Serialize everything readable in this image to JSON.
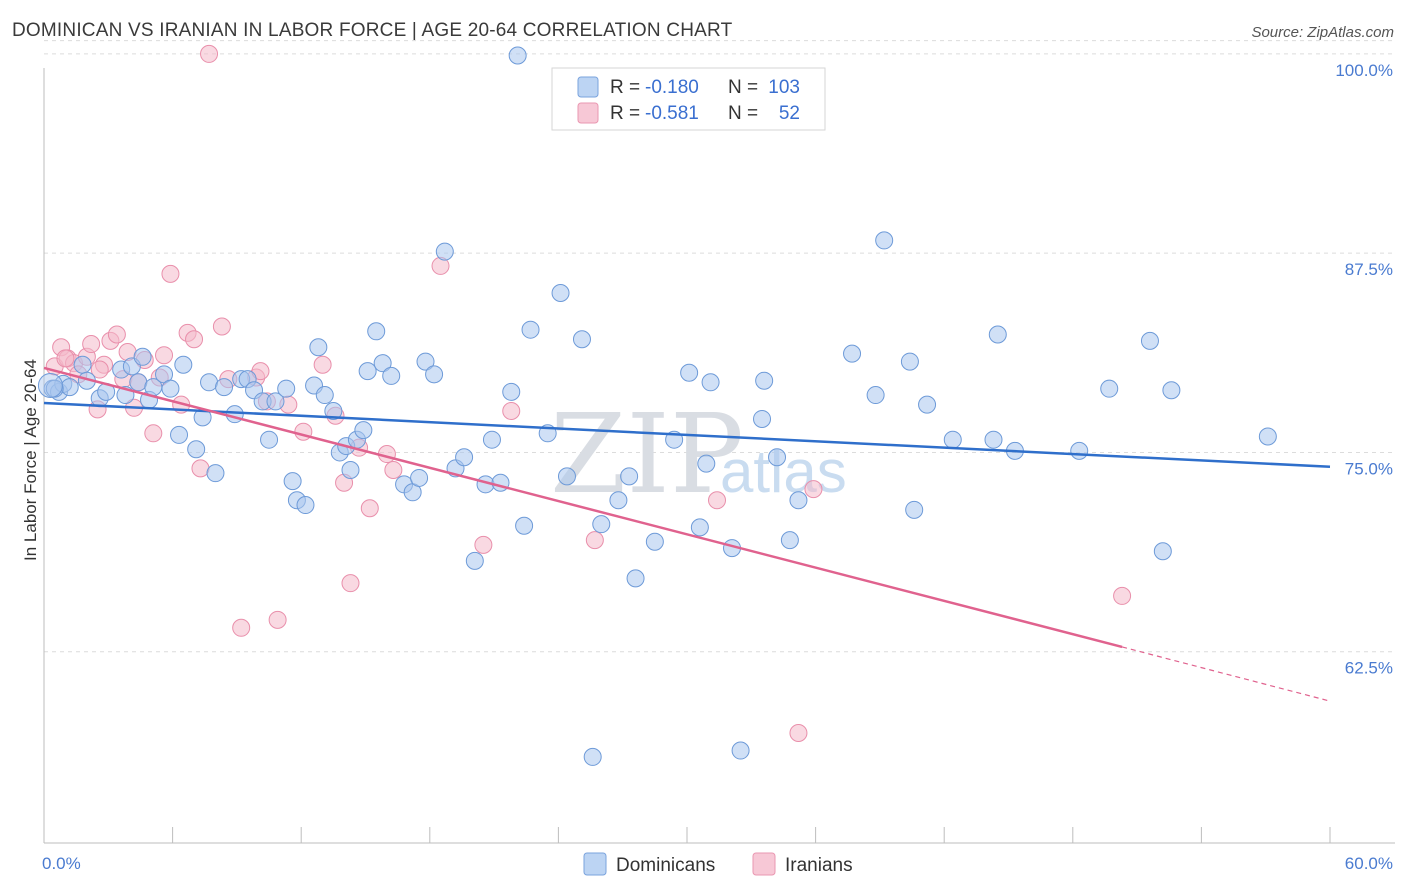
{
  "title": "DOMINICAN VS IRANIAN IN LABOR FORCE | AGE 20-64 CORRELATION CHART",
  "source": "Source: ZipAtlas.com",
  "colors": {
    "blue_fill": "#a9c6ee",
    "blue_stroke": "#6d9ad8",
    "blue_line": "#2f6fcb",
    "pink_fill": "#f4b9ca",
    "pink_stroke": "#e98fab",
    "pink_line": "#e0628e",
    "axis_text": "#4a7bd0",
    "grid": "#dcdcdc"
  },
  "legend_box": {
    "rows": [
      {
        "r_label": "R =",
        "r_value": "-0.180",
        "n_label": "N =",
        "n_value": "103"
      },
      {
        "r_label": "R =",
        "r_value": "-0.581",
        "n_label": "N =",
        "n_value": "52"
      }
    ]
  },
  "bottom_legend": [
    "Dominicans",
    "Iranians"
  ],
  "watermark": {
    "zip": "ZIP",
    "atlas": "atlas"
  },
  "chart_data": {
    "type": "scatter",
    "title": "DOMINICAN VS IRANIAN IN LABOR FORCE | AGE 20-64 CORRELATION CHART",
    "xlabel": "",
    "ylabel": "In Labor Force | Age 20-64",
    "xlim": [
      0,
      60
    ],
    "ylim": [
      50.5,
      101.5
    ],
    "x_tick_labels": [
      "0.0%",
      "60.0%"
    ],
    "y_ticks": [
      62.5,
      75.0,
      87.5,
      100.0
    ],
    "y_tick_labels": [
      "62.5%",
      "75.0%",
      "87.5%",
      "100.0%"
    ],
    "grid": "horizontal dashed",
    "legend_position": "bottom",
    "series": [
      {
        "name": "Dominicans",
        "trend": {
          "x": [
            0,
            60
          ],
          "y": [
            78.1,
            74.1
          ]
        },
        "points": [
          [
            0.4,
            79.0
          ],
          [
            0.7,
            78.8
          ],
          [
            0.9,
            79.3
          ],
          [
            1.2,
            79.1
          ],
          [
            1.8,
            80.5
          ],
          [
            2.0,
            79.5
          ],
          [
            2.6,
            78.4
          ],
          [
            2.9,
            78.8
          ],
          [
            3.6,
            80.2
          ],
          [
            3.8,
            78.6
          ],
          [
            4.1,
            80.4
          ],
          [
            4.4,
            79.4
          ],
          [
            4.6,
            81.0
          ],
          [
            4.9,
            78.3
          ],
          [
            5.1,
            79.1
          ],
          [
            5.6,
            79.9
          ],
          [
            5.9,
            79.0
          ],
          [
            6.3,
            76.1
          ],
          [
            6.5,
            80.5
          ],
          [
            7.1,
            75.2
          ],
          [
            7.4,
            77.2
          ],
          [
            7.7,
            79.4
          ],
          [
            8.0,
            73.7
          ],
          [
            8.4,
            79.1
          ],
          [
            8.9,
            77.4
          ],
          [
            9.2,
            79.6
          ],
          [
            9.5,
            79.6
          ],
          [
            9.8,
            78.9
          ],
          [
            10.2,
            78.2
          ],
          [
            10.5,
            75.8
          ],
          [
            10.8,
            78.2
          ],
          [
            11.3,
            79.0
          ],
          [
            11.6,
            73.2
          ],
          [
            11.8,
            72.0
          ],
          [
            12.2,
            71.7
          ],
          [
            12.6,
            79.2
          ],
          [
            12.8,
            81.6
          ],
          [
            13.1,
            78.6
          ],
          [
            13.5,
            77.6
          ],
          [
            13.8,
            75.0
          ],
          [
            14.1,
            75.4
          ],
          [
            14.3,
            73.9
          ],
          [
            14.6,
            75.8
          ],
          [
            14.9,
            76.4
          ],
          [
            15.1,
            80.1
          ],
          [
            15.5,
            82.6
          ],
          [
            15.8,
            80.6
          ],
          [
            16.2,
            79.8
          ],
          [
            16.8,
            73.0
          ],
          [
            17.2,
            72.5
          ],
          [
            17.5,
            73.4
          ],
          [
            17.8,
            80.7
          ],
          [
            18.2,
            79.9
          ],
          [
            18.7,
            87.6
          ],
          [
            19.2,
            74.0
          ],
          [
            19.6,
            74.7
          ],
          [
            20.1,
            68.2
          ],
          [
            20.6,
            73.0
          ],
          [
            20.9,
            75.8
          ],
          [
            21.3,
            73.1
          ],
          [
            21.8,
            78.8
          ],
          [
            22.1,
            99.9
          ],
          [
            22.4,
            70.4
          ],
          [
            22.7,
            82.7
          ],
          [
            23.5,
            76.2
          ],
          [
            24.1,
            85.0
          ],
          [
            24.4,
            73.5
          ],
          [
            25.1,
            82.1
          ],
          [
            25.6,
            55.9
          ],
          [
            26.0,
            70.5
          ],
          [
            26.8,
            72.0
          ],
          [
            27.3,
            73.5
          ],
          [
            27.6,
            67.1
          ],
          [
            28.5,
            69.4
          ],
          [
            29.4,
            75.8
          ],
          [
            30.1,
            80.0
          ],
          [
            30.6,
            70.3
          ],
          [
            30.9,
            74.3
          ],
          [
            31.1,
            79.4
          ],
          [
            32.1,
            69.0
          ],
          [
            32.5,
            56.3
          ],
          [
            33.5,
            77.1
          ],
          [
            33.6,
            79.5
          ],
          [
            34.2,
            74.7
          ],
          [
            34.8,
            69.5
          ],
          [
            35.2,
            72.0
          ],
          [
            37.7,
            81.2
          ],
          [
            38.8,
            78.6
          ],
          [
            39.2,
            88.3
          ],
          [
            40.4,
            80.7
          ],
          [
            40.6,
            71.4
          ],
          [
            41.2,
            78.0
          ],
          [
            42.4,
            75.8
          ],
          [
            44.3,
            75.8
          ],
          [
            44.5,
            82.4
          ],
          [
            45.3,
            75.1
          ],
          [
            48.3,
            75.1
          ],
          [
            49.7,
            79.0
          ],
          [
            51.6,
            82.0
          ],
          [
            52.2,
            68.8
          ],
          [
            52.6,
            78.9
          ],
          [
            57.1,
            76.0
          ],
          [
            0.5,
            79.0
          ]
        ]
      },
      {
        "name": "Iranians",
        "trend": {
          "x": [
            0,
            50.3
          ],
          "y": [
            80.3,
            62.8
          ],
          "dashed_to": {
            "x": 60,
            "y": 59.4
          }
        },
        "points": [
          [
            0.5,
            80.4
          ],
          [
            0.8,
            81.6
          ],
          [
            1.1,
            80.9
          ],
          [
            1.4,
            80.6
          ],
          [
            1.6,
            79.9
          ],
          [
            2.0,
            81.0
          ],
          [
            2.2,
            81.8
          ],
          [
            2.5,
            77.7
          ],
          [
            2.8,
            80.5
          ],
          [
            3.1,
            82.0
          ],
          [
            3.4,
            82.4
          ],
          [
            3.7,
            79.6
          ],
          [
            3.9,
            81.3
          ],
          [
            4.2,
            77.8
          ],
          [
            4.4,
            79.4
          ],
          [
            4.7,
            80.8
          ],
          [
            5.1,
            76.2
          ],
          [
            5.4,
            79.7
          ],
          [
            5.6,
            81.1
          ],
          [
            5.9,
            86.2
          ],
          [
            6.4,
            78.0
          ],
          [
            6.7,
            82.5
          ],
          [
            7.0,
            82.1
          ],
          [
            7.3,
            74.0
          ],
          [
            7.7,
            100.0
          ],
          [
            8.3,
            82.9
          ],
          [
            8.6,
            79.6
          ],
          [
            9.2,
            64.0
          ],
          [
            9.9,
            79.7
          ],
          [
            10.1,
            80.1
          ],
          [
            10.4,
            78.2
          ],
          [
            10.9,
            64.5
          ],
          [
            11.4,
            78.0
          ],
          [
            12.1,
            76.3
          ],
          [
            13.0,
            80.5
          ],
          [
            13.6,
            77.3
          ],
          [
            14.0,
            73.1
          ],
          [
            14.3,
            66.8
          ],
          [
            14.7,
            75.3
          ],
          [
            15.2,
            71.5
          ],
          [
            16.0,
            74.9
          ],
          [
            16.3,
            73.9
          ],
          [
            18.5,
            86.7
          ],
          [
            20.5,
            69.2
          ],
          [
            21.8,
            77.6
          ],
          [
            25.7,
            69.5
          ],
          [
            31.4,
            72.0
          ],
          [
            35.9,
            72.7
          ],
          [
            35.2,
            57.4
          ],
          [
            50.3,
            66.0
          ],
          [
            1.0,
            80.9
          ],
          [
            2.6,
            80.2
          ]
        ]
      }
    ]
  }
}
